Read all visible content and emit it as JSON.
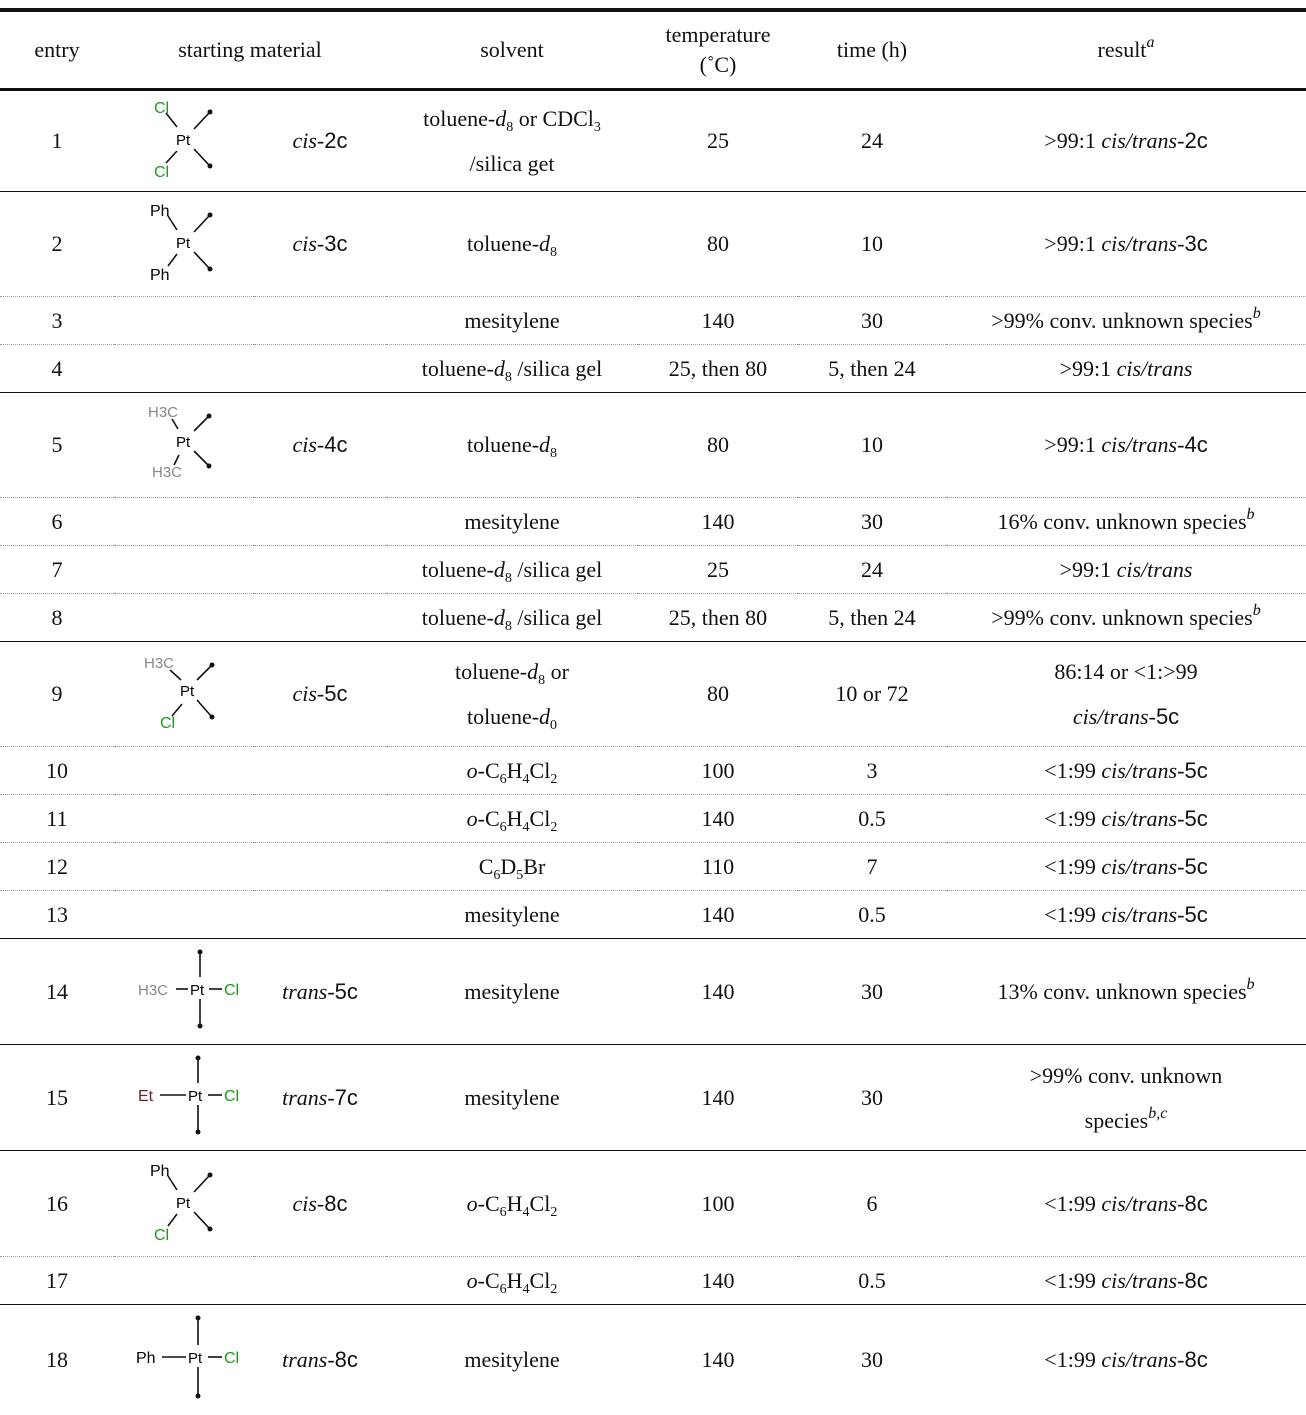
{
  "header": {
    "entry": "entry",
    "starting_material": "starting material",
    "solvent": "solvent",
    "temperature_line1": "temperature",
    "temperature_line2": "(˚C)",
    "time": "time (h)",
    "result": "result",
    "result_sup": "a"
  },
  "labels": {
    "cl": "Cl",
    "pt": "Pt",
    "ph": "Ph",
    "h3c": "H3C",
    "et": "Et",
    "h3c_trans": "H3C"
  },
  "compounds": {
    "c2": {
      "prefix": "cis-",
      "num": "2c"
    },
    "c3": {
      "prefix": "cis-",
      "num": "3c"
    },
    "c4": {
      "prefix": "cis-",
      "num": "4c"
    },
    "c5": {
      "prefix": "cis-",
      "num": "5c"
    },
    "t5": {
      "prefix": "trans-",
      "num": "5c"
    },
    "t7": {
      "prefix": "trans-",
      "num": "7c"
    },
    "c8": {
      "prefix": "cis-",
      "num": "8c"
    },
    "t8": {
      "prefix": "trans-",
      "num": "8c"
    }
  },
  "rows": {
    "r1": {
      "entry": "1",
      "solvent_a": "toluene-",
      "solvent_d": "d",
      "solvent_sub": "8",
      "solvent_b": " or CDCl",
      "solvent_sub2": "3",
      "solvent_line2": "/silica get",
      "temp": "25",
      "time": "24",
      "result_pre": ">99:1 ",
      "result_it": "cis/trans-",
      "result_num": "2c"
    },
    "r2": {
      "entry": "2",
      "solvent_a": "toluene-",
      "solvent_d": "d",
      "solvent_sub": "8",
      "temp": "80",
      "time": "10",
      "result_pre": ">99:1 ",
      "result_it": "cis/trans-",
      "result_num": "3c"
    },
    "r3": {
      "entry": "3",
      "solvent": "mesitylene",
      "temp": "140",
      "time": "30",
      "result": ">99% conv. unknown species",
      "result_sup": "b"
    },
    "r4": {
      "entry": "4",
      "solvent_a": "toluene-",
      "solvent_d": "d",
      "solvent_sub": "8",
      "solvent_b": " /silica gel",
      "temp": "25, then 80",
      "time": "5, then 24",
      "result_pre": ">99:1 ",
      "result_it": "cis/trans"
    },
    "r5": {
      "entry": "5",
      "solvent_a": "toluene-",
      "solvent_d": "d",
      "solvent_sub": "8",
      "temp": "80",
      "time": "10",
      "result_pre": ">99:1 ",
      "result_it": "cis/trans-",
      "result_num": "4c"
    },
    "r6": {
      "entry": "6",
      "solvent": "mesitylene",
      "temp": "140",
      "time": "30",
      "result": "16% conv. unknown species",
      "result_sup": "b"
    },
    "r7": {
      "entry": "7",
      "solvent_a": "toluene-",
      "solvent_d": "d",
      "solvent_sub": "8",
      "solvent_b": " /silica gel",
      "temp": "25",
      "time": "24",
      "result_pre": ">99:1 ",
      "result_it": "cis/trans"
    },
    "r8": {
      "entry": "8",
      "solvent_a": "toluene-",
      "solvent_d": "d",
      "solvent_sub": "8",
      "solvent_b": " /silica gel",
      "temp": "25, then 80",
      "time": "5, then 24",
      "result": ">99% conv. unknown species",
      "result_sup": "b"
    },
    "r9": {
      "entry": "9",
      "solvent_a": "toluene-",
      "solvent_d": "d",
      "solvent_sub": "8",
      "solvent_b": " or",
      "solvent_line2_a": "toluene-",
      "solvent_line2_d": "d",
      "solvent_line2_sub": "0",
      "temp": "80",
      "time": "10 or 72",
      "result_line1": "86:14 or <1:>99",
      "result_it": "cis/trans-",
      "result_num": "5c"
    },
    "r10": {
      "entry": "10",
      "solvent_o": "o",
      "solvent_a": "-C",
      "s1": "6",
      "s2": "H",
      "s3": "4",
      "s4": "Cl",
      "s5": "2",
      "temp": "100",
      "time": "3",
      "result_pre": "<1:99 ",
      "result_it": "cis/trans-",
      "result_num": "5c"
    },
    "r11": {
      "entry": "11",
      "solvent_o": "o",
      "solvent_a": "-C",
      "s1": "6",
      "s2": "H",
      "s3": "4",
      "s4": "Cl",
      "s5": "2",
      "temp": "140",
      "time": "0.5",
      "result_pre": "<1:99 ",
      "result_it": "cis/trans-",
      "result_num": "5c"
    },
    "r12": {
      "entry": "12",
      "solvent_a": "C",
      "s1": "6",
      "s2": "D",
      "s3": "5",
      "s4": "Br",
      "temp": "110",
      "time": "7",
      "result_pre": "<1:99 ",
      "result_it": "cis/trans-",
      "result_num": "5c"
    },
    "r13": {
      "entry": "13",
      "solvent": "mesitylene",
      "temp": "140",
      "time": "0.5",
      "result_pre": "<1:99 ",
      "result_it": "cis/trans-",
      "result_num": "5c"
    },
    "r14": {
      "entry": "14",
      "solvent": "mesitylene",
      "temp": "140",
      "time": "30",
      "result": "13% conv. unknown species",
      "result_sup": "b"
    },
    "r15": {
      "entry": "15",
      "solvent": "mesitylene",
      "temp": "140",
      "time": "30",
      "result_line1": ">99% conv. unknown",
      "result_line2": "species",
      "result_sup": "b,c"
    },
    "r16": {
      "entry": "16",
      "solvent_o": "o",
      "solvent_a": "-C",
      "s1": "6",
      "s2": "H",
      "s3": "4",
      "s4": "Cl",
      "s5": "2",
      "temp": "100",
      "time": "6",
      "result_pre": "<1:99 ",
      "result_it": "cis/trans-",
      "result_num": "8c"
    },
    "r17": {
      "entry": "17",
      "solvent_o": "o",
      "solvent_a": "-C",
      "s1": "6",
      "s2": "H",
      "s3": "4",
      "s4": "Cl",
      "s5": "2",
      "temp": "140",
      "time": "0.5",
      "result_pre": "<1:99 ",
      "result_it": "cis/trans-",
      "result_num": "8c"
    },
    "r18": {
      "entry": "18",
      "solvent": "mesitylene",
      "temp": "140",
      "time": "30",
      "result_pre": "<1:99 ",
      "result_it": "cis/trans-",
      "result_num": "8c"
    }
  },
  "colors": {
    "chlorine": "#1a9a1a",
    "methyl": "#888888",
    "ethyl": "#6b1f2a",
    "text": "#111111"
  }
}
